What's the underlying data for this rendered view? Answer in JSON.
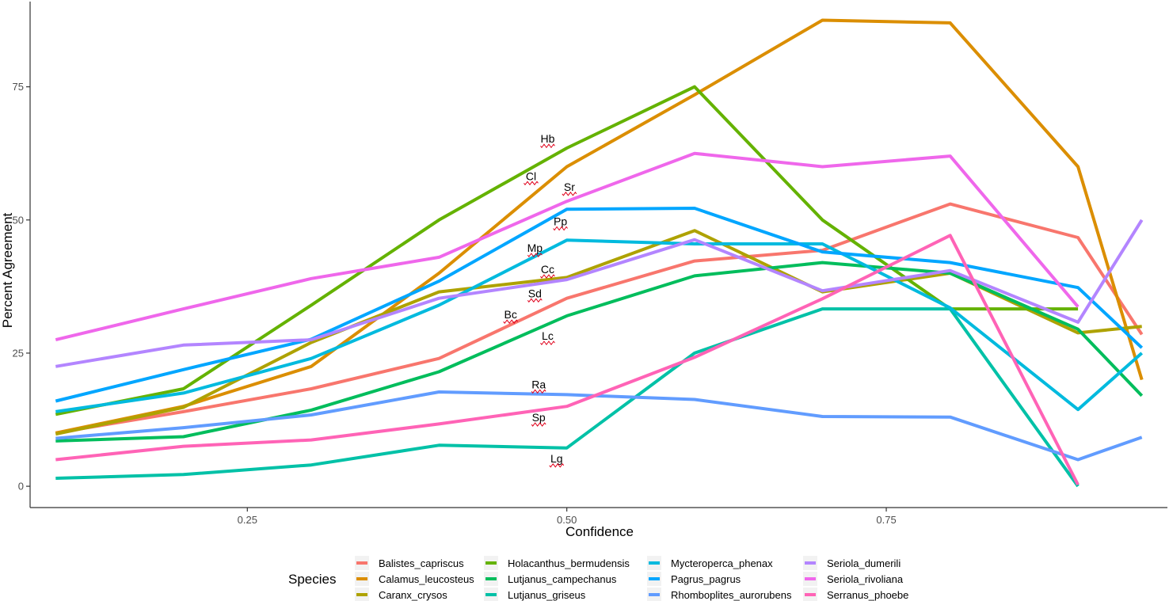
{
  "chart_data": {
    "type": "line",
    "title": "",
    "xlabel": "Confidence",
    "ylabel": "Percent Agreement",
    "xlim": [
      0.08,
      0.97
    ],
    "ylim": [
      -4,
      91
    ],
    "x_ticks": [
      0.25,
      0.5,
      0.75
    ],
    "x_tick_labels": [
      "0.25",
      "0.50",
      "0.75"
    ],
    "y_ticks": [
      0,
      25,
      50,
      75
    ],
    "y_tick_labels": [
      "0",
      "25",
      "50",
      "75"
    ],
    "grid": false,
    "legend": {
      "title": "Species",
      "placement": "bottom",
      "columns": 4
    },
    "x": [
      0.1,
      0.2,
      0.3,
      0.4,
      0.5,
      0.6,
      0.7,
      0.8,
      0.9,
      0.95
    ],
    "series": [
      {
        "name": "Balistes_capriscus",
        "abbr": "Bc",
        "color": "#F8766D",
        "values": [
          10,
          14,
          18.3,
          24,
          35.3,
          42.3,
          44.3,
          53,
          46.7,
          28.5
        ]
      },
      {
        "name": "Calamus_leucosteus",
        "abbr": "Cl",
        "color": "#DB8E00",
        "values": [
          10,
          15,
          22.5,
          40,
          60,
          73.5,
          87.5,
          87,
          60,
          20
        ]
      },
      {
        "name": "Caranx_crysos",
        "abbr": "Cc",
        "color": "#AEA200",
        "values": [
          9.8,
          14.8,
          27,
          36.5,
          39.2,
          48,
          36.5,
          40,
          28.8,
          30
        ]
      },
      {
        "name": "Holacanthus_bermudensis",
        "abbr": "Hb",
        "color": "#64B200",
        "values": [
          13.5,
          18.3,
          34,
          50,
          63.5,
          75,
          50,
          33.3,
          33.3,
          null
        ]
      },
      {
        "name": "Lutjanus_campechanus",
        "abbr": "Lc",
        "color": "#00BD5C",
        "values": [
          8.5,
          9.3,
          14.3,
          21.5,
          32,
          39.5,
          42,
          40,
          29.5,
          17
        ]
      },
      {
        "name": "Lutjanus_griseus",
        "abbr": "Lg",
        "color": "#00C1A7",
        "values": [
          1.5,
          2.2,
          4,
          7.7,
          7.2,
          25,
          33.3,
          33.3,
          0,
          null
        ]
      },
      {
        "name": "Mycteroperca_phenax",
        "abbr": "Mp",
        "color": "#00BADE",
        "values": [
          14,
          17.5,
          24,
          34,
          46.2,
          45.5,
          45.5,
          33.5,
          14.4,
          25
        ]
      },
      {
        "name": "Pagrus_pagrus",
        "abbr": "Pp",
        "color": "#00A6FF",
        "values": [
          16,
          21.9,
          27.6,
          38.5,
          52,
          52.2,
          44,
          42,
          37.3,
          26
        ]
      },
      {
        "name": "Rhomboplites_aurorubens",
        "abbr": "Ra",
        "color": "#619CFF",
        "values": [
          9,
          11,
          13.4,
          17.7,
          17.2,
          16.3,
          13.1,
          13,
          5,
          9.2
        ]
      },
      {
        "name": "Seriola_dumerili",
        "abbr": "Sd",
        "color": "#B385FF",
        "values": [
          22.5,
          26.5,
          27.5,
          35.3,
          38.8,
          46.3,
          36.7,
          40.5,
          30.8,
          50
        ]
      },
      {
        "name": "Seriola_rivoliana",
        "abbr": "Sr",
        "color": "#EF67EB",
        "values": [
          27.5,
          33.3,
          39,
          43,
          53.5,
          62.5,
          60,
          62,
          33.7,
          null
        ]
      },
      {
        "name": "Serranus_phoebe",
        "abbr": "Sp",
        "color": "#FF63B6",
        "values": [
          5,
          7.5,
          8.7,
          11.7,
          15,
          24.2,
          35.2,
          47.1,
          0.3,
          null
        ]
      }
    ],
    "annotations": [
      {
        "text": "Hb",
        "x": 0.485,
        "y": 64.5
      },
      {
        "text": "Cl",
        "x": 0.472,
        "y": 57.5
      },
      {
        "text": "Sr",
        "x": 0.502,
        "y": 55.5
      },
      {
        "text": "Pp",
        "x": 0.495,
        "y": 49
      },
      {
        "text": "Mp",
        "x": 0.475,
        "y": 44
      },
      {
        "text": "Cc",
        "x": 0.485,
        "y": 40
      },
      {
        "text": "Sd",
        "x": 0.475,
        "y": 35.5
      },
      {
        "text": "Bc",
        "x": 0.456,
        "y": 31.5
      },
      {
        "text": "Lc",
        "x": 0.485,
        "y": 27.5
      },
      {
        "text": "Ra",
        "x": 0.478,
        "y": 18.4
      },
      {
        "text": "Sp",
        "x": 0.478,
        "y": 12.2
      },
      {
        "text": "Lg",
        "x": 0.492,
        "y": 4.5
      }
    ]
  }
}
